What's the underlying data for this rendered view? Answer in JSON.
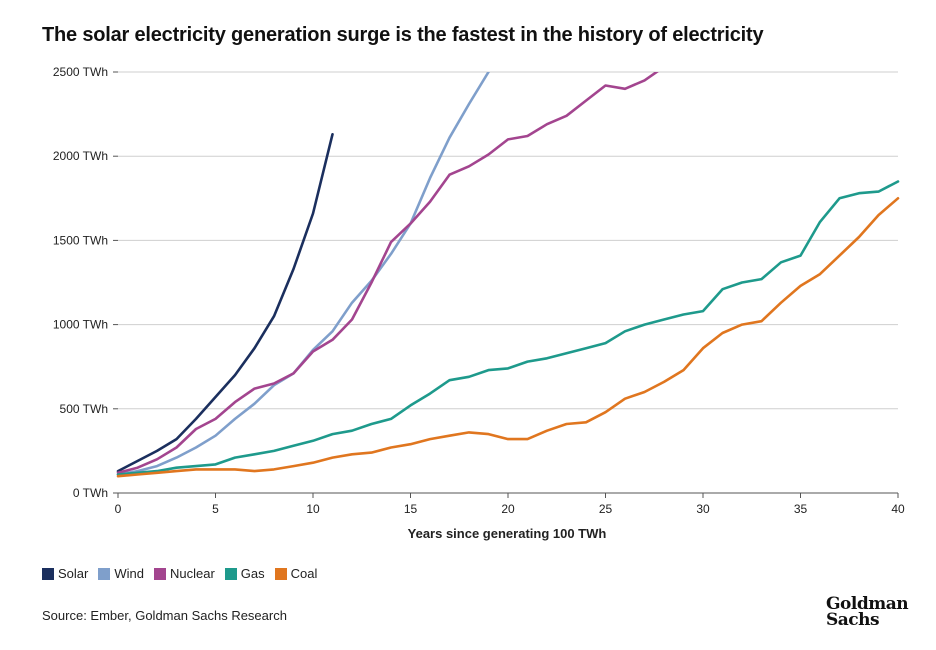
{
  "title": "The solar electricity generation surge is the fastest in the history of electricity",
  "source": "Source: Ember, Goldman Sachs Research",
  "logo": {
    "line1": "Goldman",
    "line2": "Sachs"
  },
  "chart_data": {
    "type": "line",
    "xlabel": "Years since generating 100 TWh",
    "ylabel": "",
    "xlim": [
      0,
      40
    ],
    "ylim": [
      0,
      2500
    ],
    "x_ticks": [
      "0",
      "5",
      "10",
      "15",
      "20",
      "25",
      "30",
      "35",
      "40"
    ],
    "y_ticks": [
      "0 TWh",
      "500 TWh",
      "1000 TWh",
      "1500 TWh",
      "2000 TWh",
      "2500 TWh"
    ],
    "grid": "horizontal",
    "legend_position": "bottom-left",
    "series": [
      {
        "name": "Solar",
        "color": "#1b2f5e",
        "x": [
          0,
          1,
          2,
          3,
          4,
          5,
          6,
          7,
          8,
          9,
          10,
          11
        ],
        "values": [
          130,
          190,
          250,
          320,
          440,
          570,
          700,
          860,
          1050,
          1330,
          1660,
          2130
        ]
      },
      {
        "name": "Wind",
        "color": "#7f9fcb",
        "x": [
          0,
          1,
          2,
          3,
          4,
          5,
          6,
          7,
          8,
          9,
          10,
          11,
          12,
          13,
          14,
          15,
          16,
          17,
          18,
          19,
          20
        ],
        "values": [
          110,
          130,
          160,
          210,
          270,
          340,
          440,
          530,
          640,
          710,
          850,
          960,
          1130,
          1260,
          1420,
          1600,
          1870,
          2110,
          2310,
          2500,
          2700
        ]
      },
      {
        "name": "Nuclear",
        "color": "#a3458f",
        "x": [
          0,
          1,
          2,
          3,
          4,
          5,
          6,
          7,
          8,
          9,
          10,
          11,
          12,
          13,
          14,
          15,
          16,
          17,
          18,
          19,
          20,
          21,
          22,
          23,
          24,
          25,
          26,
          27,
          28
        ],
        "values": [
          120,
          150,
          200,
          270,
          380,
          440,
          540,
          620,
          650,
          710,
          840,
          910,
          1030,
          1250,
          1490,
          1600,
          1730,
          1890,
          1940,
          2010,
          2100,
          2120,
          2190,
          2240,
          2330,
          2420,
          2400,
          2450,
          2530
        ]
      },
      {
        "name": "Gas",
        "color": "#1e9a8c",
        "x": [
          0,
          1,
          2,
          3,
          4,
          5,
          6,
          7,
          8,
          9,
          10,
          11,
          12,
          13,
          14,
          15,
          16,
          17,
          18,
          19,
          20,
          21,
          22,
          23,
          24,
          25,
          26,
          27,
          28,
          29,
          30,
          31,
          32,
          33,
          34,
          35,
          36,
          37,
          38,
          39,
          40
        ],
        "values": [
          110,
          120,
          130,
          150,
          160,
          170,
          210,
          230,
          250,
          280,
          310,
          350,
          370,
          410,
          440,
          520,
          590,
          670,
          690,
          730,
          740,
          780,
          800,
          830,
          860,
          890,
          960,
          1000,
          1030,
          1060,
          1080,
          1210,
          1250,
          1270,
          1370,
          1410,
          1610,
          1750,
          1780,
          1790,
          1850
        ]
      },
      {
        "name": "Coal",
        "color": "#e0761f",
        "x": [
          0,
          1,
          2,
          3,
          4,
          5,
          6,
          7,
          8,
          9,
          10,
          11,
          12,
          13,
          14,
          15,
          16,
          17,
          18,
          19,
          20,
          21,
          22,
          23,
          24,
          25,
          26,
          27,
          28,
          29,
          30,
          31,
          32,
          33,
          34,
          35,
          36,
          37,
          38,
          39,
          40
        ],
        "values": [
          100,
          110,
          120,
          130,
          140,
          140,
          140,
          130,
          140,
          160,
          180,
          210,
          230,
          240,
          270,
          290,
          320,
          340,
          360,
          350,
          320,
          320,
          370,
          410,
          420,
          480,
          560,
          600,
          660,
          730,
          860,
          950,
          1000,
          1020,
          1130,
          1230,
          1300,
          1410,
          1520,
          1650,
          1750
        ]
      }
    ]
  }
}
